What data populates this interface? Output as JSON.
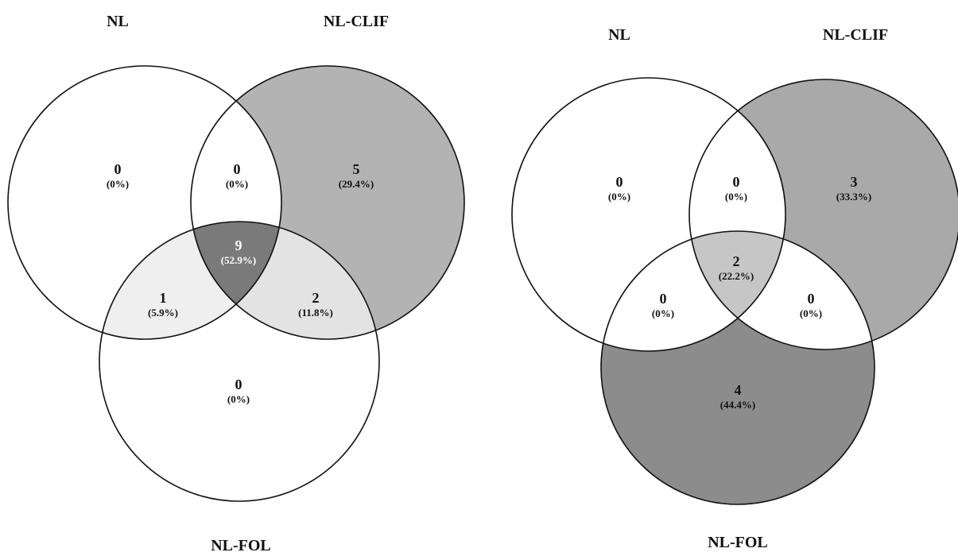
{
  "diagrams": [
    {
      "id": "left",
      "set_labels": {
        "a": "NL",
        "b": "NL-CLIF",
        "c": "NL-FOL"
      },
      "regions": {
        "a": {
          "count": "0",
          "pct": "(0%)",
          "fill": "#ffffff"
        },
        "b": {
          "count": "5",
          "pct": "(29.4%)",
          "fill": "#b3b3b3"
        },
        "c": {
          "count": "0",
          "pct": "(0%)",
          "fill": "#ffffff"
        },
        "ab": {
          "count": "0",
          "pct": "(0%)",
          "fill": "#ffffff"
        },
        "ac": {
          "count": "1",
          "pct": "(5.9%)",
          "fill": "#efefef"
        },
        "bc": {
          "count": "2",
          "pct": "(11.8%)",
          "fill": "#e3e3e3"
        },
        "abc": {
          "count": "9",
          "pct": "(52.9%)",
          "fill": "#7a7a7a",
          "text_color": "#ffffff"
        }
      }
    },
    {
      "id": "right",
      "set_labels": {
        "a": "NL",
        "b": "NL-CLIF",
        "c": "NL-FOL"
      },
      "regions": {
        "a": {
          "count": "0",
          "pct": "(0%)",
          "fill": "#ffffff"
        },
        "b": {
          "count": "3",
          "pct": "(33.3%)",
          "fill": "#a9a9a9"
        },
        "c": {
          "count": "4",
          "pct": "(44.4%)",
          "fill": "#8c8c8c"
        },
        "ab": {
          "count": "0",
          "pct": "(0%)",
          "fill": "#ffffff"
        },
        "ac": {
          "count": "0",
          "pct": "(0%)",
          "fill": "#ffffff"
        },
        "bc": {
          "count": "0",
          "pct": "(0%)",
          "fill": "#ffffff"
        },
        "abc": {
          "count": "2",
          "pct": "(22.2%)",
          "fill": "#c6c6c6"
        }
      }
    }
  ]
}
